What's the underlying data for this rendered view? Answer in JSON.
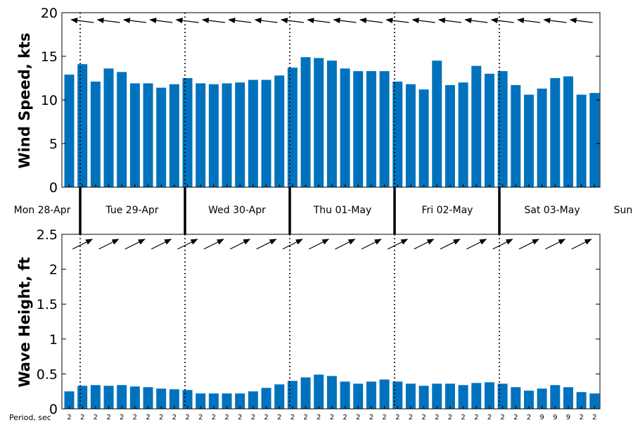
{
  "chart_data": [
    {
      "type": "bar",
      "ylabel": "Wind Speed, kts",
      "ylim": [
        0,
        20
      ],
      "yticks": [
        "0",
        "5",
        "10",
        "15",
        "20"
      ],
      "values": [
        12.9,
        14.1,
        12.1,
        13.6,
        13.2,
        11.9,
        11.9,
        11.4,
        11.8,
        12.5,
        11.9,
        11.8,
        11.9,
        12.0,
        12.3,
        12.3,
        12.8,
        13.7,
        14.9,
        14.8,
        14.5,
        13.6,
        13.3,
        13.3,
        13.3,
        12.1,
        11.8,
        11.2,
        14.5,
        11.7,
        12.0,
        13.9,
        13.0,
        13.3,
        11.7,
        10.6,
        11.3,
        12.5,
        12.7,
        10.6,
        10.8
      ],
      "direction_arrows": "pointing left (easterly wind)",
      "bar_color": "#0072BD",
      "grid": false
    },
    {
      "type": "bar",
      "ylabel": "Wave Height, ft",
      "ylim": [
        0,
        2.5
      ],
      "yticks": [
        "0",
        "0.5",
        "1",
        "1.5",
        "2",
        "2.5"
      ],
      "values": [
        0.25,
        0.33,
        0.34,
        0.33,
        0.34,
        0.32,
        0.31,
        0.29,
        0.28,
        0.27,
        0.22,
        0.22,
        0.22,
        0.22,
        0.25,
        0.3,
        0.35,
        0.4,
        0.45,
        0.49,
        0.47,
        0.39,
        0.36,
        0.39,
        0.42,
        0.39,
        0.36,
        0.33,
        0.36,
        0.36,
        0.34,
        0.37,
        0.38,
        0.36,
        0.31,
        0.26,
        0.29,
        0.34,
        0.31,
        0.24,
        0.22
      ],
      "direction_arrows": "pointing up-right",
      "bar_color": "#0072BD",
      "grid": false
    }
  ],
  "days": [
    "Mon 28-Apr",
    "Tue 29-Apr",
    "Wed 30-Apr",
    "Thu 01-May",
    "Fri 02-May",
    "Sat 03-May",
    "Sun"
  ],
  "period_label": "Period, sec",
  "periods": [
    "2",
    "2",
    "2",
    "2",
    "2",
    "2",
    "2",
    "2",
    "2",
    "2",
    "2",
    "2",
    "2",
    "2",
    "2",
    "2",
    "2",
    "2",
    "2",
    "2",
    "2",
    "2",
    "2",
    "2",
    "2",
    "2",
    "2",
    "2",
    "2",
    "2",
    "2",
    "2",
    "2",
    "2",
    "2",
    "2",
    "9",
    "9",
    "9",
    "2",
    "2"
  ]
}
